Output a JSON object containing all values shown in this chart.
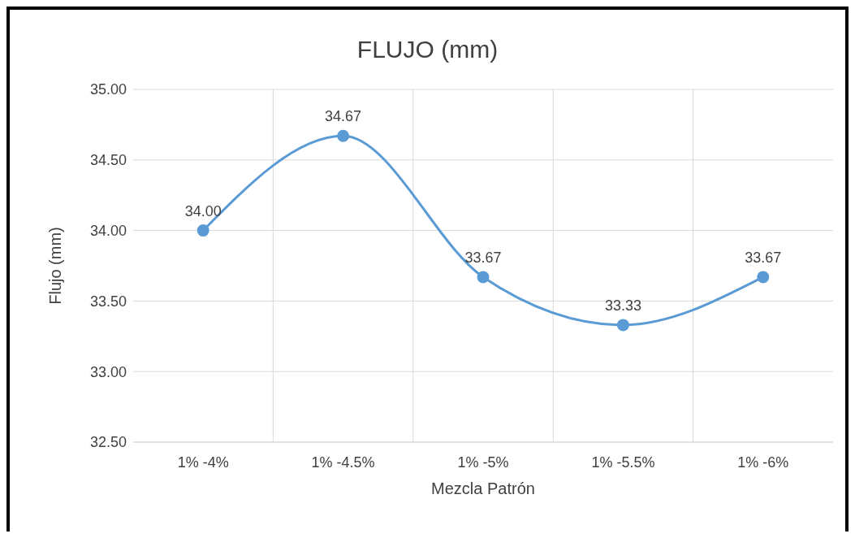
{
  "chart_data": {
    "type": "line",
    "title": "FLUJO (mm)",
    "xlabel": "Mezcla Patrón",
    "ylabel": "Flujo (mm)",
    "categories": [
      "1% -4%",
      "1% -4.5%",
      "1% -5%",
      "1% -5.5%",
      "1% -6%"
    ],
    "series": [
      {
        "color": "#5b9bd5",
        "values": [
          34.0,
          34.67,
          33.67,
          33.33,
          33.67
        ],
        "value_labels": [
          "34.00",
          "34.67",
          "33.67",
          "33.33",
          "33.67"
        ]
      }
    ],
    "ylim": [
      32.5,
      35
    ],
    "yticks": [
      {
        "value": 32.5,
        "label": "32.50"
      },
      {
        "value": 33,
        "label": "33.00"
      },
      {
        "value": 33.5,
        "label": "33.50"
      },
      {
        "value": 34,
        "label": "34.00"
      },
      {
        "value": 34.5,
        "label": "34.50"
      },
      {
        "value": 35,
        "label": "35.00"
      }
    ],
    "grid": true,
    "marker": "circle",
    "line_style": "solid"
  }
}
